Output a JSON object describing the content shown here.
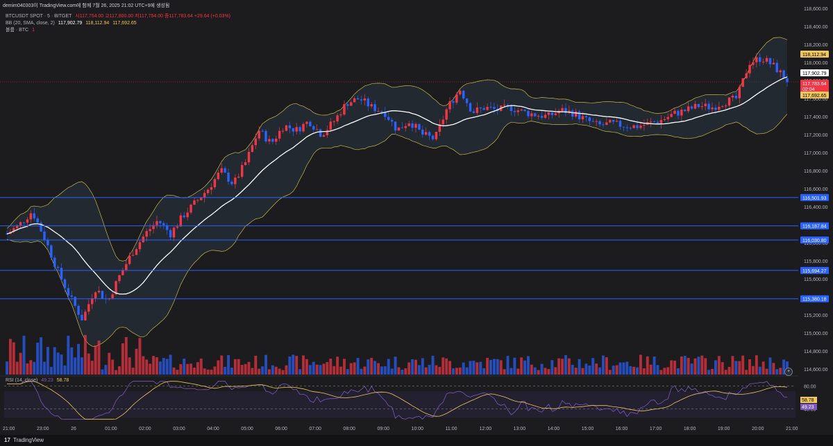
{
  "header": {
    "user_line": "demim040303이 TradingView.com에 함께 7월 26, 2025 21:02 UTC+9에 생성됨",
    "symbol": "BTCUSDT SPOT · 5 · BITGET",
    "ohlc": "시117,754.00  고117,800.00  저117,754.00  종117,783.64  +29.64 (+0.03%)",
    "bb_label": "BB (20, SMA, close, 2)",
    "bb_mid": "117,902.79",
    "bb_upper": "118,112.94",
    "bb_lower": "117,692.65",
    "vol_label": "볼륨 · BTC",
    "vol_value": "1"
  },
  "rsi": {
    "label": "RSI (14, close)",
    "value": "49.23",
    "ma": "58.78",
    "levels": [
      "80.00",
      "40.00"
    ]
  },
  "footer": {
    "brand": "TradingView",
    "logo": "17"
  },
  "alert_circle": "+",
  "colors": {
    "up": "#f23645",
    "down": "#2962ff",
    "bb_band": "#c8b94a",
    "bb_mid": "#ffffff",
    "hline": "#2962ff",
    "rsi": "#7e57c2",
    "rsi_ma": "#f0c75e"
  },
  "chart_data": {
    "type": "candlestick",
    "price_axis": [
      "118,600.00",
      "118,400.00",
      "118,200.00",
      "118,000.00",
      "117,800.00",
      "117,600.00",
      "117,400.00",
      "117,200.00",
      "117,000.00",
      "116,800.00",
      "116,600.00",
      "116,400.00",
      "116,200.00",
      "116,000.00",
      "115,800.00",
      "115,600.00",
      "115,400.00",
      "115,200.00",
      "115,000.00",
      "114,800.00",
      "114,600.00"
    ],
    "ylim": [
      114540,
      118660
    ],
    "time_axis": [
      "21:00",
      "23:00",
      "26",
      "01:00",
      "02:00",
      "03:00",
      "04:00",
      "05:00",
      "06:00",
      "07:00",
      "08:00",
      "09:00",
      "10:00",
      "11:00",
      "12:00",
      "13:00",
      "14:00",
      "15:00",
      "16:00",
      "17:00",
      "18:00",
      "19:00",
      "20:00",
      "21:00"
    ],
    "horizontal_lines": [
      {
        "value": 116501.93,
        "label": "116,501.93"
      },
      {
        "value": 116187.84,
        "label": "116,187.84"
      },
      {
        "value": 116030.8,
        "label": "116,030.80"
      },
      {
        "value": 115694.27,
        "label": "115,694.27"
      },
      {
        "value": 115380.18,
        "label": "115,380.18"
      }
    ],
    "price_tags": [
      {
        "label": "118,112.94",
        "style": "yellow"
      },
      {
        "label": "117,902.79",
        "style": "white"
      },
      {
        "label": "117,783.64",
        "style": "red"
      },
      {
        "label": "02:04",
        "style": "red"
      },
      {
        "label": "117,692.65",
        "style": "yellow"
      }
    ],
    "close_trace": [
      [
        0,
        116100
      ],
      [
        5,
        116200
      ],
      [
        10,
        116350
      ],
      [
        15,
        116050
      ],
      [
        20,
        115700
      ],
      [
        25,
        115400
      ],
      [
        30,
        115150
      ],
      [
        35,
        115500
      ],
      [
        40,
        115350
      ],
      [
        45,
        115650
      ],
      [
        50,
        115900
      ],
      [
        55,
        116100
      ],
      [
        60,
        116250
      ],
      [
        65,
        116100
      ],
      [
        70,
        116300
      ],
      [
        75,
        116450
      ],
      [
        80,
        116600
      ],
      [
        85,
        116800
      ],
      [
        90,
        116650
      ],
      [
        95,
        116900
      ],
      [
        100,
        117250
      ],
      [
        105,
        117100
      ],
      [
        110,
        117300
      ],
      [
        115,
        117250
      ],
      [
        120,
        117350
      ],
      [
        125,
        117200
      ],
      [
        130,
        117350
      ],
      [
        135,
        117550
      ],
      [
        140,
        117600
      ],
      [
        145,
        117500
      ],
      [
        150,
        117450
      ],
      [
        155,
        117250
      ],
      [
        160,
        117350
      ],
      [
        165,
        117200
      ],
      [
        170,
        117150
      ],
      [
        175,
        117500
      ],
      [
        180,
        117700
      ],
      [
        185,
        117450
      ],
      [
        190,
        117500
      ],
      [
        195,
        117470
      ],
      [
        200,
        117500
      ],
      [
        205,
        117450
      ],
      [
        210,
        117420
      ],
      [
        215,
        117400
      ],
      [
        220,
        117470
      ],
      [
        225,
        117440
      ],
      [
        230,
        117360
      ],
      [
        235,
        117300
      ],
      [
        240,
        117320
      ],
      [
        245,
        117300
      ],
      [
        250,
        117290
      ],
      [
        255,
        117320
      ],
      [
        260,
        117360
      ],
      [
        265,
        117430
      ],
      [
        270,
        117470
      ],
      [
        275,
        117520
      ],
      [
        280,
        117500
      ],
      [
        285,
        117560
      ],
      [
        290,
        117600
      ],
      [
        295,
        118000
      ],
      [
        300,
        118050
      ],
      [
        305,
        117950
      ],
      [
        310,
        117800
      ]
    ],
    "rsi_range": [
      20,
      90
    ]
  }
}
